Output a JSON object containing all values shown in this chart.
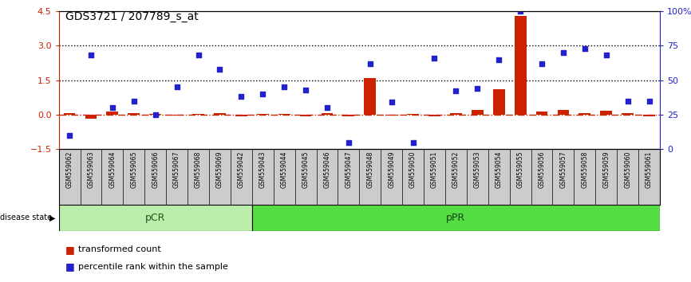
{
  "title": "GDS3721 / 207789_s_at",
  "samples": [
    "GSM559062",
    "GSM559063",
    "GSM559064",
    "GSM559065",
    "GSM559066",
    "GSM559067",
    "GSM559068",
    "GSM559069",
    "GSM559042",
    "GSM559043",
    "GSM559044",
    "GSM559045",
    "GSM559046",
    "GSM559047",
    "GSM559048",
    "GSM559049",
    "GSM559050",
    "GSM559051",
    "GSM559052",
    "GSM559053",
    "GSM559054",
    "GSM559055",
    "GSM559056",
    "GSM559057",
    "GSM559058",
    "GSM559059",
    "GSM559060",
    "GSM559061"
  ],
  "pCR_count": 9,
  "pPR_count": 19,
  "transformed_count": [
    0.05,
    -0.18,
    0.13,
    0.07,
    0.04,
    -0.04,
    0.04,
    0.07,
    -0.07,
    0.04,
    0.04,
    -0.07,
    0.07,
    -0.07,
    1.6,
    -0.04,
    0.04,
    -0.07,
    0.05,
    0.2,
    1.1,
    4.3,
    0.12,
    0.22,
    0.08,
    0.16,
    0.05,
    -0.06
  ],
  "percentile_rank_pct": [
    10,
    68,
    30,
    35,
    25,
    45,
    68,
    58,
    38,
    40,
    45,
    43,
    30,
    5,
    62,
    34,
    5,
    66,
    42,
    44,
    65,
    100,
    62,
    70,
    73,
    68,
    35,
    35
  ],
  "left_ylim": [
    -1.5,
    4.5
  ],
  "right_ylim": [
    0,
    100
  ],
  "bar_color": "#cc2200",
  "scatter_color": "#2222cc",
  "pCR_color": "#bbeeaa",
  "pPR_color": "#55dd44",
  "label_bg": "#cccccc",
  "bg_color": "#ffffff"
}
